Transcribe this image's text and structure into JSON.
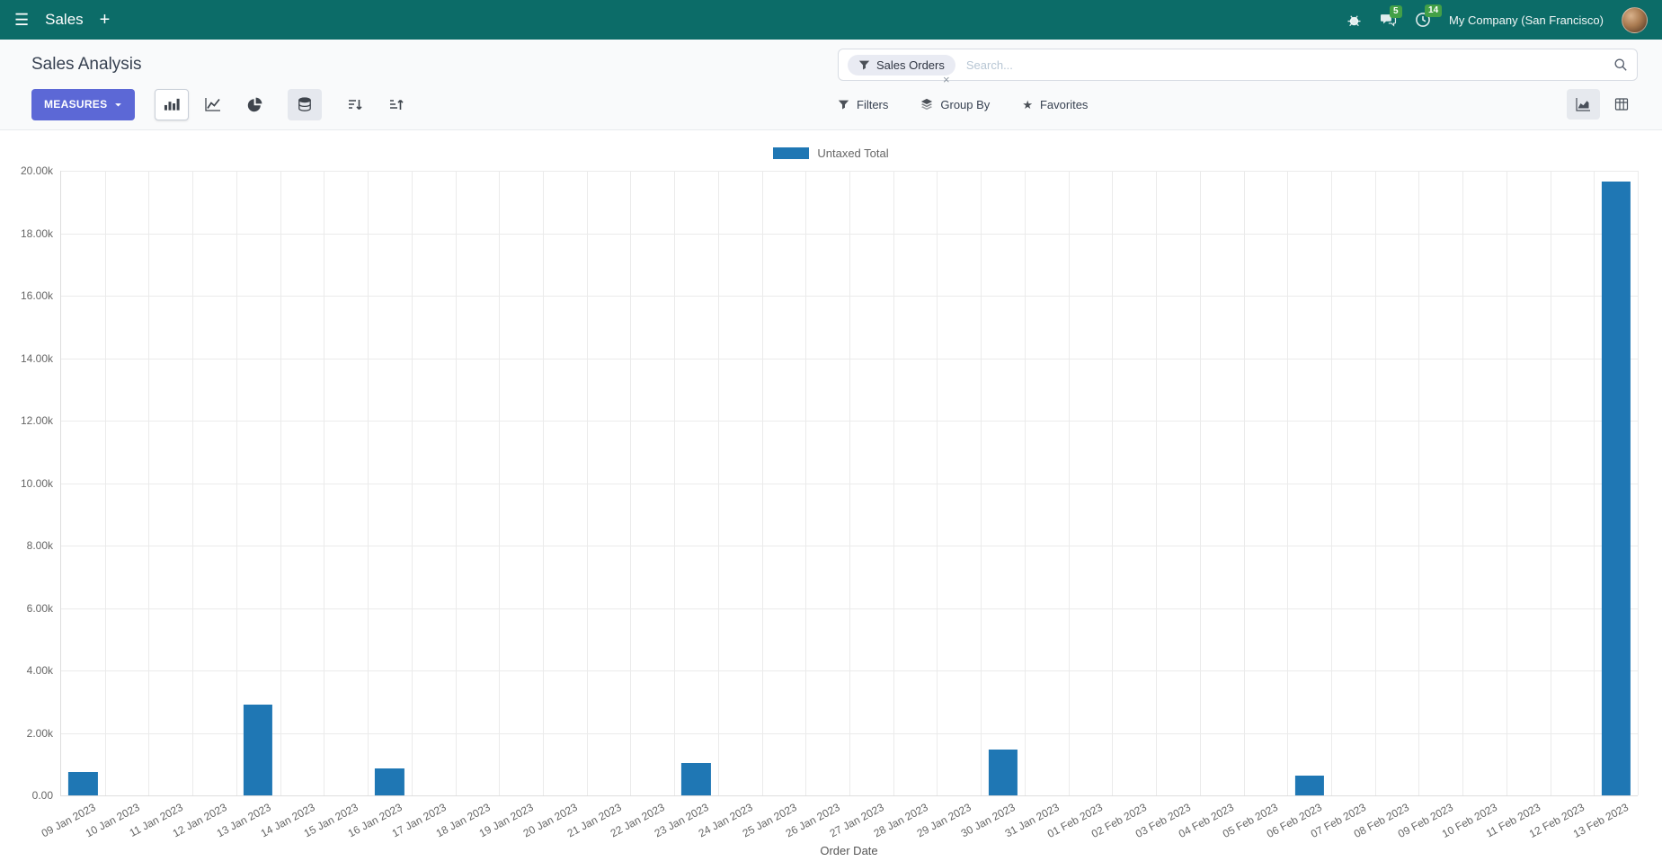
{
  "navbar": {
    "app_name": "Sales",
    "company_name": "My Company (San Francisco)",
    "messages_badge": "5",
    "activities_badge": "14"
  },
  "control_panel": {
    "title": "Sales Analysis",
    "measures_button": "MEASURES",
    "filters_label": "Filters",
    "group_by_label": "Group By",
    "favorites_label": "Favorites",
    "search": {
      "facet_label": "Sales Orders",
      "placeholder": "Search...",
      "remove": "×"
    }
  },
  "chart_data": {
    "type": "bar",
    "title": "",
    "legend_position": "top",
    "grid": true,
    "xlabel": "Order Date",
    "ylabel": "",
    "ylim": [
      0,
      20000
    ],
    "ytick_step": 2000,
    "ytick_labels": [
      "0.00",
      "2.00k",
      "4.00k",
      "6.00k",
      "8.00k",
      "10.00k",
      "12.00k",
      "14.00k",
      "16.00k",
      "18.00k",
      "20.00k"
    ],
    "categories": [
      "09 Jan 2023",
      "10 Jan 2023",
      "11 Jan 2023",
      "12 Jan 2023",
      "13 Jan 2023",
      "14 Jan 2023",
      "15 Jan 2023",
      "16 Jan 2023",
      "17 Jan 2023",
      "18 Jan 2023",
      "19 Jan 2023",
      "20 Jan 2023",
      "21 Jan 2023",
      "22 Jan 2023",
      "23 Jan 2023",
      "24 Jan 2023",
      "25 Jan 2023",
      "26 Jan 2023",
      "27 Jan 2023",
      "28 Jan 2023",
      "29 Jan 2023",
      "30 Jan 2023",
      "31 Jan 2023",
      "01 Feb 2023",
      "02 Feb 2023",
      "03 Feb 2023",
      "04 Feb 2023",
      "05 Feb 2023",
      "06 Feb 2023",
      "07 Feb 2023",
      "08 Feb 2023",
      "09 Feb 2023",
      "10 Feb 2023",
      "11 Feb 2023",
      "12 Feb 2023",
      "13 Feb 2023"
    ],
    "series": [
      {
        "name": "Untaxed Total",
        "color": "#1f77b4",
        "values": [
          750,
          0,
          0,
          0,
          2900,
          0,
          0,
          850,
          0,
          0,
          0,
          0,
          0,
          0,
          1050,
          0,
          0,
          0,
          0,
          0,
          0,
          1480,
          0,
          0,
          0,
          0,
          0,
          0,
          620,
          0,
          0,
          0,
          0,
          0,
          0,
          19650
        ]
      }
    ]
  },
  "colors": {
    "navbar_bg": "#0c6c68",
    "primary_button": "#5c68d6",
    "bar": "#1f77b4",
    "badge": "#43a047"
  }
}
